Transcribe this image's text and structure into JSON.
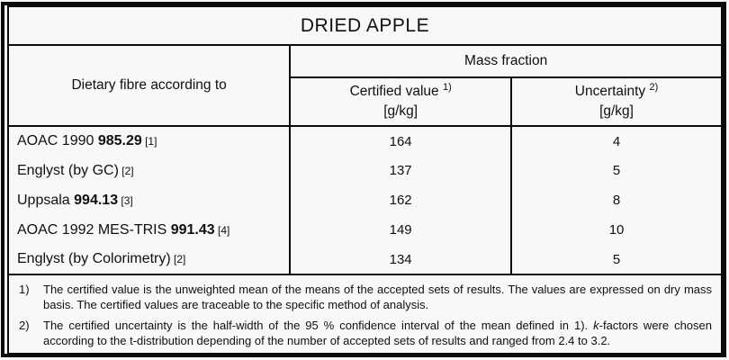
{
  "title": "DRIED APPLE",
  "header": {
    "method_label": "Dietary fibre according to",
    "group_label": "Mass fraction",
    "certified": {
      "label": "Certified value",
      "sup": "1)",
      "unit": "[g/kg]"
    },
    "uncertainty": {
      "label": "Uncertainty",
      "sup": "2)",
      "unit": "[g/kg]"
    }
  },
  "rows": [
    {
      "prefix": "AOAC 1990 ",
      "bold": "985.29",
      "ref": " [1]",
      "certified": "164",
      "uncertainty": "4"
    },
    {
      "prefix": "Englyst (by GC)",
      "bold": "",
      "ref": " [2]",
      "certified": "137",
      "uncertainty": "5"
    },
    {
      "prefix": "Uppsala ",
      "bold": "994.13",
      "ref": " [3]",
      "certified": "162",
      "uncertainty": "8"
    },
    {
      "prefix": "AOAC 1992 MES-TRIS ",
      "bold": "991.43",
      "ref": " [4]",
      "certified": "149",
      "uncertainty": "10"
    },
    {
      "prefix": "Englyst (by Colorimetry)",
      "bold": "",
      "ref": " [2]",
      "certified": "134",
      "uncertainty": "5"
    }
  ],
  "footnotes": [
    {
      "marker": "1)",
      "text": "The certified value is the unweighted mean of the means of the accepted sets of results. The values are expressed on dry mass basis. The certified values are traceable to the specific method of analysis."
    },
    {
      "marker": "2)",
      "pre": "The certified uncertainty is the half-width of the 95 % confidence interval of the mean defined in 1).  ",
      "k": "k",
      "post": "-factors were chosen according to the t-distribution depending of the number of accepted sets of results and ranged from 2.4 to 3.2."
    }
  ],
  "colors": {
    "border": "#0b0b0b",
    "text": "#101010",
    "background": "#f8f8f7"
  }
}
